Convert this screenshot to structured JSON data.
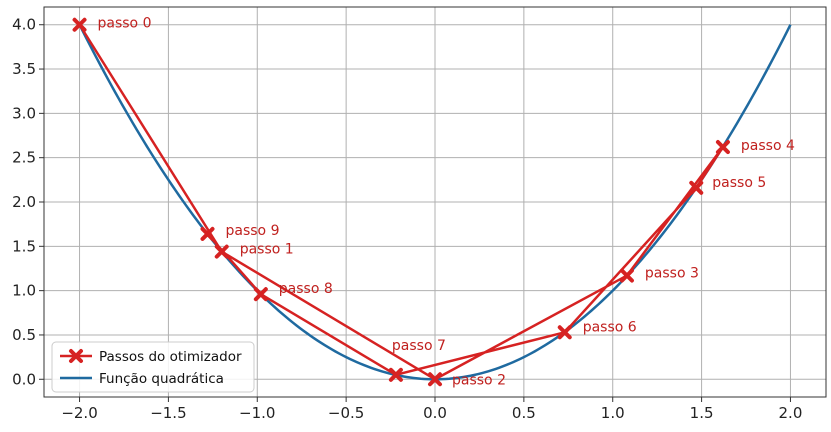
{
  "chart_data": {
    "type": "line",
    "xlim": [
      -2.2,
      2.2
    ],
    "ylim": [
      -0.2,
      4.2
    ],
    "grid": true,
    "x_ticks": [
      -2.0,
      -1.5,
      -1.0,
      -0.5,
      0.0,
      0.5,
      1.0,
      1.5,
      2.0
    ],
    "x_tick_labels": [
      "−2.0",
      "−1.5",
      "−1.0",
      "−0.5",
      "0.0",
      "0.5",
      "1.0",
      "1.5",
      "2.0"
    ],
    "y_ticks": [
      0.0,
      0.5,
      1.0,
      1.5,
      2.0,
      2.5,
      3.0,
      3.5,
      4.0
    ],
    "y_tick_labels": [
      "0.0",
      "0.5",
      "1.0",
      "1.5",
      "2.0",
      "2.5",
      "3.0",
      "3.5",
      "4.0"
    ],
    "legend_position": "lower-left",
    "series": [
      {
        "name": "Passos do otimizador",
        "color": "#d62222",
        "marker": "X",
        "x": [
          -2.0,
          -1.2,
          0.0,
          1.08,
          1.62,
          1.47,
          0.73,
          -0.22,
          -0.98,
          -1.28
        ],
        "y": [
          4.0,
          1.44,
          0.0,
          1.17,
          2.62,
          2.16,
          0.53,
          0.05,
          0.96,
          1.64
        ],
        "labels": [
          "passo 0",
          "passo 1",
          "passo 2",
          "passo 3",
          "passo 4",
          "passo 5",
          "passo 6",
          "passo 7",
          "passo 8",
          "passo 9"
        ]
      },
      {
        "name": "Função quadrática",
        "color": "#1f6aa0",
        "function": "x^2",
        "x_range": [
          -2.0,
          2.0
        ]
      }
    ]
  }
}
